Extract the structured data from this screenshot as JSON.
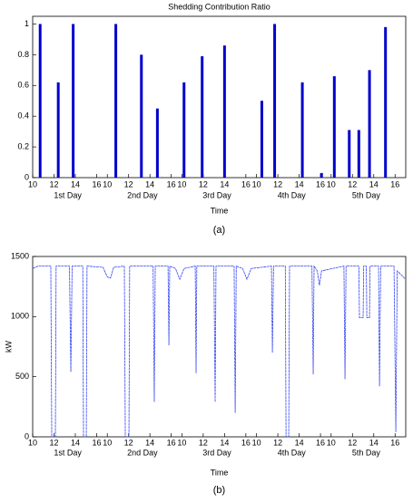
{
  "chart_data": [
    {
      "type": "bar",
      "title": "Shedding Contribution Ratio",
      "x_label": "Time",
      "caption": "(a)",
      "day_labels": [
        "1st Day",
        "2nd Day",
        "3rd Day",
        "4th Day",
        "5th Day"
      ],
      "x": [
        0.7,
        2.4,
        3.8,
        7.8,
        10.2,
        11.7,
        14.2,
        15.9,
        18.0,
        21.5,
        22.7,
        25.3,
        27.1,
        28.3,
        29.7,
        30.6,
        31.6,
        33.1
      ],
      "values": [
        1.0,
        0.62,
        1.0,
        1.0,
        0.8,
        0.45,
        0.62,
        0.79,
        0.86,
        0.5,
        1.0,
        0.62,
        0.03,
        0.66,
        0.31,
        0.31,
        0.7,
        0.98
      ],
      "color": "#0000cc",
      "xlim": [
        0,
        35
      ],
      "xticks": [
        {
          "value": 0,
          "label": "10"
        },
        {
          "value": 2,
          "label": "12"
        },
        {
          "value": 4,
          "label": "14"
        },
        {
          "value": 6,
          "label": "16"
        },
        {
          "value": 7,
          "label": "10"
        },
        {
          "value": 9,
          "label": "12"
        },
        {
          "value": 11,
          "label": "14"
        },
        {
          "value": 13,
          "label": "16"
        },
        {
          "value": 14,
          "label": "10"
        },
        {
          "value": 16,
          "label": "12"
        },
        {
          "value": 18,
          "label": "14"
        },
        {
          "value": 20,
          "label": "16"
        },
        {
          "value": 21,
          "label": "10"
        },
        {
          "value": 23,
          "label": "12"
        },
        {
          "value": 25,
          "label": "14"
        },
        {
          "value": 27,
          "label": "16"
        },
        {
          "value": 28,
          "label": "10"
        },
        {
          "value": 30,
          "label": "12"
        },
        {
          "value": 32,
          "label": "14"
        },
        {
          "value": 34,
          "label": "16"
        }
      ],
      "ylim": [
        0,
        1.05
      ],
      "yticks": [
        0,
        0.2,
        0.4,
        0.6,
        0.8,
        1
      ]
    },
    {
      "type": "line",
      "y_label": "kW",
      "x_label": "Time",
      "caption": "(b)",
      "day_labels": [
        "1st Day",
        "2nd Day",
        "3rd Day",
        "4th Day",
        "5th Day"
      ],
      "x": [
        0,
        0.5,
        1.7,
        1.79,
        2.13,
        2.2,
        3.45,
        3.58,
        3.7,
        4.7,
        4.77,
        5.03,
        5.1,
        6.6,
        7.0,
        7.3,
        7.6,
        8.6,
        8.69,
        9.03,
        9.1,
        11.3,
        11.41,
        11.5,
        12.7,
        12.78,
        12.86,
        13.4,
        13.8,
        14.2,
        15.25,
        15.33,
        15.4,
        17.0,
        17.12,
        17.2,
        18.9,
        19.0,
        19.1,
        19.7,
        20.1,
        20.5,
        22.4,
        22.49,
        22.6,
        23.7,
        23.77,
        24.02,
        24.1,
        26.2,
        26.32,
        26.4,
        26.7,
        26.9,
        27.1,
        29.2,
        29.3,
        29.4,
        30.6,
        30.66,
        31.0,
        31.05,
        31.3,
        31.35,
        31.6,
        31.65,
        32.45,
        32.54,
        32.65,
        33.9,
        34.07,
        34.2,
        35
      ],
      "values": [
        1400,
        1420,
        1420,
        0,
        0,
        1420,
        1420,
        540,
        1420,
        1420,
        0,
        0,
        1420,
        1410,
        1330,
        1320,
        1410,
        1420,
        0,
        0,
        1420,
        1420,
        290,
        1420,
        1420,
        760,
        1420,
        1400,
        1310,
        1400,
        1420,
        530,
        1420,
        1420,
        290,
        1420,
        1420,
        200,
        1420,
        1400,
        1310,
        1400,
        1420,
        700,
        1420,
        1420,
        0,
        0,
        1420,
        1420,
        520,
        1420,
        1380,
        1260,
        1380,
        1420,
        480,
        1420,
        1420,
        990,
        990,
        1420,
        1420,
        990,
        990,
        1420,
        1420,
        420,
        1420,
        1420,
        40,
        1380,
        1310
      ],
      "color": "#3344ee",
      "xlim": [
        0,
        35
      ],
      "xticks": [
        {
          "value": 0,
          "label": "10"
        },
        {
          "value": 2,
          "label": "12"
        },
        {
          "value": 4,
          "label": "14"
        },
        {
          "value": 6,
          "label": "16"
        },
        {
          "value": 7,
          "label": "10"
        },
        {
          "value": 9,
          "label": "12"
        },
        {
          "value": 11,
          "label": "14"
        },
        {
          "value": 13,
          "label": "16"
        },
        {
          "value": 14,
          "label": "10"
        },
        {
          "value": 16,
          "label": "12"
        },
        {
          "value": 18,
          "label": "14"
        },
        {
          "value": 20,
          "label": "16"
        },
        {
          "value": 21,
          "label": "10"
        },
        {
          "value": 23,
          "label": "12"
        },
        {
          "value": 25,
          "label": "14"
        },
        {
          "value": 27,
          "label": "16"
        },
        {
          "value": 28,
          "label": "10"
        },
        {
          "value": 30,
          "label": "12"
        },
        {
          "value": 32,
          "label": "14"
        },
        {
          "value": 34,
          "label": "16"
        }
      ],
      "ylim": [
        0,
        1500
      ],
      "yticks": [
        0,
        500,
        1000,
        1500
      ]
    }
  ]
}
